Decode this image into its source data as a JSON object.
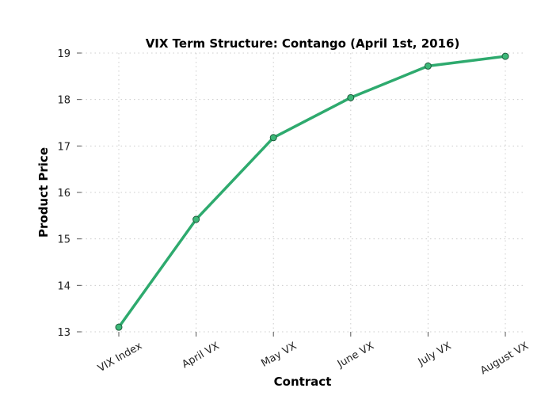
{
  "chart_data": {
    "type": "line",
    "title": "VIX Term Structure: Contango (April 1st, 2016)",
    "xlabel": "Contract",
    "ylabel": "Product Price",
    "categories": [
      "VIX Index",
      "April VX",
      "May VX",
      "June VX",
      "July VX",
      "August VX"
    ],
    "series": [
      {
        "values": [
          13.1,
          15.42,
          17.18,
          18.04,
          18.72,
          18.93
        ]
      }
    ],
    "ylim": [
      13,
      19
    ],
    "yticks": [
      13,
      14,
      15,
      16,
      17,
      18,
      19
    ],
    "grid": true,
    "colors": {
      "line": "#2eaa6e",
      "marker_fill": "#3cb878",
      "marker_edge": "#1e5c3c"
    }
  }
}
